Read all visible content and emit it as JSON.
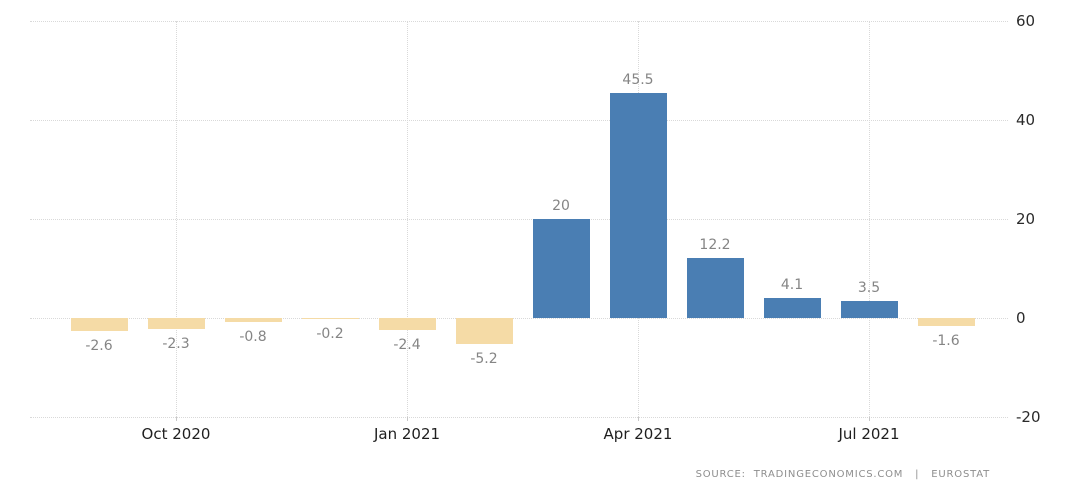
{
  "chart_data": {
    "type": "bar",
    "values": [
      -2.6,
      -2.3,
      -0.8,
      -0.2,
      -2.4,
      -5.2,
      20,
      45.5,
      12.2,
      4.1,
      3.5,
      -1.6
    ],
    "bar_labels": [
      "-2.6",
      "-2.3",
      "-0.8",
      "-0.2",
      "-2.4",
      "-5.2",
      "20",
      "45.5",
      "12.2",
      "4.1",
      "3.5",
      "-1.6"
    ],
    "x_ticks": [
      {
        "index": 1,
        "label": "Oct 2020"
      },
      {
        "index": 4,
        "label": "Jan 2021"
      },
      {
        "index": 7,
        "label": "Apr 2021"
      },
      {
        "index": 10,
        "label": "Jul 2021"
      }
    ],
    "y_ticks": [
      60,
      40,
      20,
      0,
      -20
    ],
    "ylim": [
      -20,
      60
    ],
    "grid": "dotted",
    "legend_position": "none",
    "title": "",
    "xlabel": "",
    "ylabel": "",
    "colors": {
      "positive_bar": "#4a7eb3",
      "negative_bar": "#f5dba6",
      "gridline": "#d9d9d9",
      "value_label": "#858585",
      "axis_label": "#2b2b2b"
    }
  },
  "footer": {
    "source_line": "SOURCE:  TRADINGECONOMICS.COM   |   EUROSTAT"
  }
}
